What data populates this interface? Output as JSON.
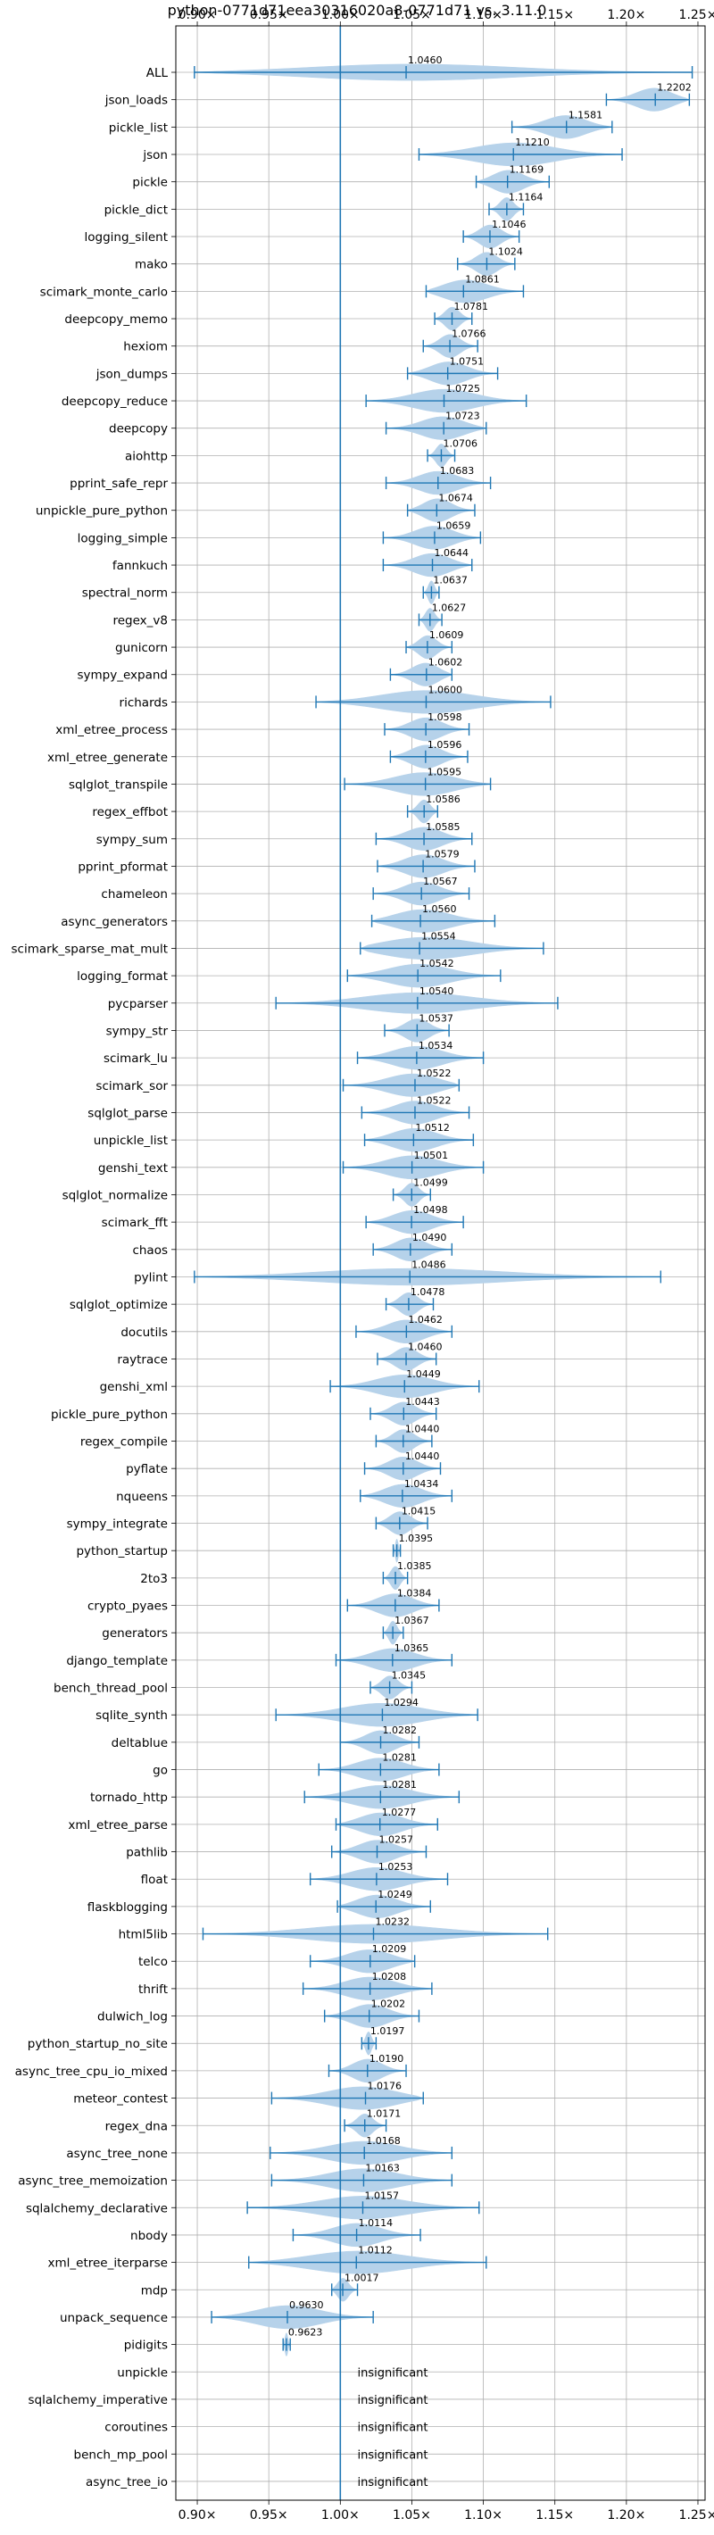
{
  "chart_data": {
    "type": "violin",
    "title": "python-0771d71eea30316020a8-0771d71 vs. 3.11.0",
    "x_ticks": [
      "0.90×",
      "0.95×",
      "1.00×",
      "1.05×",
      "1.10×",
      "1.15×",
      "1.20×",
      "1.25×"
    ],
    "x_tick_values": [
      0.9,
      0.95,
      1.0,
      1.05,
      1.1,
      1.15,
      1.2,
      1.25
    ],
    "xlim": [
      0.885,
      1.255
    ],
    "reference_line": 1.0,
    "grid": true,
    "colors": {
      "violin": "#b6d2ea",
      "line": "#1f77b4",
      "grid": "#b0b0b0"
    },
    "benchmarks": [
      {
        "name": "ALL",
        "label": "1.0460",
        "median": 1.046,
        "min": 0.898,
        "max": 1.246
      },
      {
        "name": "json_loads",
        "label": "1.2202",
        "median": 1.2202,
        "min": 1.186,
        "max": 1.244
      },
      {
        "name": "pickle_list",
        "label": "1.1581",
        "median": 1.1581,
        "min": 1.12,
        "max": 1.19
      },
      {
        "name": "json",
        "label": "1.1210",
        "median": 1.121,
        "min": 1.055,
        "max": 1.197
      },
      {
        "name": "pickle",
        "label": "1.1169",
        "median": 1.1169,
        "min": 1.095,
        "max": 1.146
      },
      {
        "name": "pickle_dict",
        "label": "1.1164",
        "median": 1.1164,
        "min": 1.104,
        "max": 1.128
      },
      {
        "name": "logging_silent",
        "label": "1.1046",
        "median": 1.1046,
        "min": 1.086,
        "max": 1.125
      },
      {
        "name": "mako",
        "label": "1.1024",
        "median": 1.1024,
        "min": 1.082,
        "max": 1.122
      },
      {
        "name": "scimark_monte_carlo",
        "label": "1.0861",
        "median": 1.0861,
        "min": 1.06,
        "max": 1.128
      },
      {
        "name": "deepcopy_memo",
        "label": "1.0781",
        "median": 1.0781,
        "min": 1.066,
        "max": 1.092
      },
      {
        "name": "hexiom",
        "label": "1.0766",
        "median": 1.0766,
        "min": 1.058,
        "max": 1.096
      },
      {
        "name": "json_dumps",
        "label": "1.0751",
        "median": 1.0751,
        "min": 1.047,
        "max": 1.11
      },
      {
        "name": "deepcopy_reduce",
        "label": "1.0725",
        "median": 1.0725,
        "min": 1.018,
        "max": 1.13
      },
      {
        "name": "deepcopy",
        "label": "1.0723",
        "median": 1.0723,
        "min": 1.032,
        "max": 1.102
      },
      {
        "name": "aiohttp",
        "label": "1.0706",
        "median": 1.0706,
        "min": 1.061,
        "max": 1.08
      },
      {
        "name": "pprint_safe_repr",
        "label": "1.0683",
        "median": 1.0683,
        "min": 1.032,
        "max": 1.105
      },
      {
        "name": "unpickle_pure_python",
        "label": "1.0674",
        "median": 1.0674,
        "min": 1.047,
        "max": 1.094
      },
      {
        "name": "logging_simple",
        "label": "1.0659",
        "median": 1.0659,
        "min": 1.03,
        "max": 1.098
      },
      {
        "name": "fannkuch",
        "label": "1.0644",
        "median": 1.0644,
        "min": 1.03,
        "max": 1.092
      },
      {
        "name": "spectral_norm",
        "label": "1.0637",
        "median": 1.0637,
        "min": 1.058,
        "max": 1.069
      },
      {
        "name": "regex_v8",
        "label": "1.0627",
        "median": 1.0627,
        "min": 1.055,
        "max": 1.071
      },
      {
        "name": "gunicorn",
        "label": "1.0609",
        "median": 1.0609,
        "min": 1.046,
        "max": 1.078
      },
      {
        "name": "sympy_expand",
        "label": "1.0602",
        "median": 1.0602,
        "min": 1.035,
        "max": 1.078
      },
      {
        "name": "richards",
        "label": "1.0600",
        "median": 1.06,
        "min": 0.983,
        "max": 1.147
      },
      {
        "name": "xml_etree_process",
        "label": "1.0598",
        "median": 1.0598,
        "min": 1.031,
        "max": 1.09
      },
      {
        "name": "xml_etree_generate",
        "label": "1.0596",
        "median": 1.0596,
        "min": 1.035,
        "max": 1.089
      },
      {
        "name": "sqlglot_transpile",
        "label": "1.0595",
        "median": 1.0595,
        "min": 1.003,
        "max": 1.105
      },
      {
        "name": "regex_effbot",
        "label": "1.0586",
        "median": 1.0586,
        "min": 1.047,
        "max": 1.068
      },
      {
        "name": "sympy_sum",
        "label": "1.0585",
        "median": 1.0585,
        "min": 1.025,
        "max": 1.092
      },
      {
        "name": "pprint_pformat",
        "label": "1.0579",
        "median": 1.0579,
        "min": 1.026,
        "max": 1.094
      },
      {
        "name": "chameleon",
        "label": "1.0567",
        "median": 1.0567,
        "min": 1.023,
        "max": 1.09
      },
      {
        "name": "async_generators",
        "label": "1.0560",
        "median": 1.056,
        "min": 1.022,
        "max": 1.108
      },
      {
        "name": "scimark_sparse_mat_mult",
        "label": "1.0554",
        "median": 1.0554,
        "min": 1.014,
        "max": 1.142
      },
      {
        "name": "logging_format",
        "label": "1.0542",
        "median": 1.0542,
        "min": 1.005,
        "max": 1.112
      },
      {
        "name": "pycparser",
        "label": "1.0540",
        "median": 1.054,
        "min": 0.955,
        "max": 1.152
      },
      {
        "name": "sympy_str",
        "label": "1.0537",
        "median": 1.0537,
        "min": 1.031,
        "max": 1.076
      },
      {
        "name": "scimark_lu",
        "label": "1.0534",
        "median": 1.0534,
        "min": 1.012,
        "max": 1.1
      },
      {
        "name": "scimark_sor",
        "label": "1.0522",
        "median": 1.0522,
        "min": 1.002,
        "max": 1.083
      },
      {
        "name": "sqlglot_parse",
        "label": "1.0522",
        "median": 1.0522,
        "min": 1.015,
        "max": 1.09
      },
      {
        "name": "unpickle_list",
        "label": "1.0512",
        "median": 1.0512,
        "min": 1.017,
        "max": 1.093
      },
      {
        "name": "genshi_text",
        "label": "1.0501",
        "median": 1.0501,
        "min": 1.002,
        "max": 1.1
      },
      {
        "name": "sqlglot_normalize",
        "label": "1.0499",
        "median": 1.0499,
        "min": 1.037,
        "max": 1.063
      },
      {
        "name": "scimark_fft",
        "label": "1.0498",
        "median": 1.0498,
        "min": 1.018,
        "max": 1.086
      },
      {
        "name": "chaos",
        "label": "1.0490",
        "median": 1.049,
        "min": 1.023,
        "max": 1.078
      },
      {
        "name": "pylint",
        "label": "1.0486",
        "median": 1.0486,
        "min": 0.898,
        "max": 1.224
      },
      {
        "name": "sqlglot_optimize",
        "label": "1.0478",
        "median": 1.0478,
        "min": 1.032,
        "max": 1.065
      },
      {
        "name": "docutils",
        "label": "1.0462",
        "median": 1.0462,
        "min": 1.011,
        "max": 1.078
      },
      {
        "name": "raytrace",
        "label": "1.0460",
        "median": 1.046,
        "min": 1.026,
        "max": 1.067
      },
      {
        "name": "genshi_xml",
        "label": "1.0449",
        "median": 1.0449,
        "min": 0.993,
        "max": 1.097
      },
      {
        "name": "pickle_pure_python",
        "label": "1.0443",
        "median": 1.0443,
        "min": 1.021,
        "max": 1.067
      },
      {
        "name": "regex_compile",
        "label": "1.0440",
        "median": 1.044,
        "min": 1.025,
        "max": 1.064
      },
      {
        "name": "pyflate",
        "label": "1.0440",
        "median": 1.044,
        "min": 1.017,
        "max": 1.07
      },
      {
        "name": "nqueens",
        "label": "1.0434",
        "median": 1.0434,
        "min": 1.014,
        "max": 1.078
      },
      {
        "name": "sympy_integrate",
        "label": "1.0415",
        "median": 1.0415,
        "min": 1.025,
        "max": 1.061
      },
      {
        "name": "python_startup",
        "label": "1.0395",
        "median": 1.0395,
        "min": 1.037,
        "max": 1.042
      },
      {
        "name": "2to3",
        "label": "1.0385",
        "median": 1.0385,
        "min": 1.03,
        "max": 1.047
      },
      {
        "name": "crypto_pyaes",
        "label": "1.0384",
        "median": 1.0384,
        "min": 1.005,
        "max": 1.069
      },
      {
        "name": "generators",
        "label": "1.0367",
        "median": 1.0367,
        "min": 1.03,
        "max": 1.044
      },
      {
        "name": "django_template",
        "label": "1.0365",
        "median": 1.0365,
        "min": 0.997,
        "max": 1.078
      },
      {
        "name": "bench_thread_pool",
        "label": "1.0345",
        "median": 1.0345,
        "min": 1.021,
        "max": 1.05
      },
      {
        "name": "sqlite_synth",
        "label": "1.0294",
        "median": 1.0294,
        "min": 0.955,
        "max": 1.096
      },
      {
        "name": "deltablue",
        "label": "1.0282",
        "median": 1.0282,
        "min": 1.0,
        "max": 1.055
      },
      {
        "name": "go",
        "label": "1.0281",
        "median": 1.0281,
        "min": 0.985,
        "max": 1.069
      },
      {
        "name": "tornado_http",
        "label": "1.0281",
        "median": 1.0281,
        "min": 0.975,
        "max": 1.083
      },
      {
        "name": "xml_etree_parse",
        "label": "1.0277",
        "median": 1.0277,
        "min": 0.997,
        "max": 1.068
      },
      {
        "name": "pathlib",
        "label": "1.0257",
        "median": 1.0257,
        "min": 0.994,
        "max": 1.06
      },
      {
        "name": "float",
        "label": "1.0253",
        "median": 1.0253,
        "min": 0.979,
        "max": 1.075
      },
      {
        "name": "flaskblogging",
        "label": "1.0249",
        "median": 1.0249,
        "min": 0.998,
        "max": 1.063
      },
      {
        "name": "html5lib",
        "label": "1.0232",
        "median": 1.0232,
        "min": 0.904,
        "max": 1.145
      },
      {
        "name": "telco",
        "label": "1.0209",
        "median": 1.0209,
        "min": 0.979,
        "max": 1.052
      },
      {
        "name": "thrift",
        "label": "1.0208",
        "median": 1.0208,
        "min": 0.974,
        "max": 1.064
      },
      {
        "name": "dulwich_log",
        "label": "1.0202",
        "median": 1.0202,
        "min": 0.989,
        "max": 1.055
      },
      {
        "name": "python_startup_no_site",
        "label": "1.0197",
        "median": 1.0197,
        "min": 1.015,
        "max": 1.025
      },
      {
        "name": "async_tree_cpu_io_mixed",
        "label": "1.0190",
        "median": 1.019,
        "min": 0.992,
        "max": 1.046
      },
      {
        "name": "meteor_contest",
        "label": "1.0176",
        "median": 1.0176,
        "min": 0.952,
        "max": 1.058
      },
      {
        "name": "regex_dna",
        "label": "1.0171",
        "median": 1.0171,
        "min": 1.003,
        "max": 1.032
      },
      {
        "name": "async_tree_none",
        "label": "1.0168",
        "median": 1.0168,
        "min": 0.951,
        "max": 1.078
      },
      {
        "name": "async_tree_memoization",
        "label": "1.0163",
        "median": 1.0163,
        "min": 0.952,
        "max": 1.078
      },
      {
        "name": "sqlalchemy_declarative",
        "label": "1.0157",
        "median": 1.0157,
        "min": 0.935,
        "max": 1.097
      },
      {
        "name": "nbody",
        "label": "1.0114",
        "median": 1.0114,
        "min": 0.967,
        "max": 1.056
      },
      {
        "name": "xml_etree_iterparse",
        "label": "1.0112",
        "median": 1.0112,
        "min": 0.936,
        "max": 1.102
      },
      {
        "name": "mdp",
        "label": "1.0017",
        "median": 1.0017,
        "min": 0.994,
        "max": 1.012
      },
      {
        "name": "unpack_sequence",
        "label": "0.9630",
        "median": 0.963,
        "min": 0.91,
        "max": 1.023
      },
      {
        "name": "pidigits",
        "label": "0.9623",
        "median": 0.9623,
        "min": 0.96,
        "max": 0.965
      },
      {
        "name": "unpickle",
        "label": "insignificant",
        "insignificant": true
      },
      {
        "name": "sqlalchemy_imperative",
        "label": "insignificant",
        "insignificant": true
      },
      {
        "name": "coroutines",
        "label": "insignificant",
        "insignificant": true
      },
      {
        "name": "bench_mp_pool",
        "label": "insignificant",
        "insignificant": true
      },
      {
        "name": "async_tree_io",
        "label": "insignificant",
        "insignificant": true
      }
    ]
  }
}
